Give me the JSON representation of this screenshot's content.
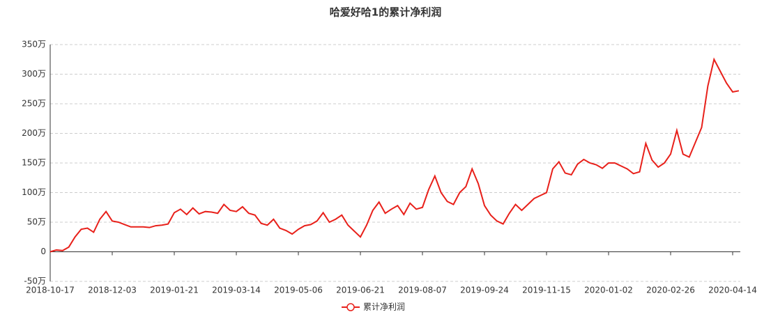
{
  "chart_data": {
    "type": "line",
    "title": "哈爱好哈1的累计净利润",
    "categories": [
      "2018-10-17",
      null,
      null,
      null,
      null,
      null,
      null,
      null,
      null,
      null,
      "2018-12-03",
      null,
      null,
      null,
      null,
      null,
      null,
      null,
      null,
      null,
      "2019-01-21",
      null,
      null,
      null,
      null,
      null,
      null,
      null,
      null,
      null,
      "2019-03-14",
      null,
      null,
      null,
      null,
      null,
      null,
      null,
      null,
      null,
      "2019-05-06",
      null,
      null,
      null,
      null,
      null,
      null,
      null,
      null,
      null,
      "2019-06-21",
      null,
      null,
      null,
      null,
      null,
      null,
      null,
      null,
      null,
      "2019-08-07",
      null,
      null,
      null,
      null,
      null,
      null,
      null,
      null,
      null,
      "2019-09-24",
      null,
      null,
      null,
      null,
      null,
      null,
      null,
      null,
      null,
      "2019-11-15",
      null,
      null,
      null,
      null,
      null,
      null,
      null,
      null,
      null,
      "2020-01-02",
      null,
      null,
      null,
      null,
      null,
      null,
      null,
      null,
      null,
      "2020-02-26",
      null,
      null,
      null,
      null,
      null,
      null,
      null,
      null,
      null,
      "2020-04-14",
      null
    ],
    "series": [
      {
        "name": "累计净利润",
        "color": "#e8201a",
        "values": [
          0,
          3,
          2,
          8,
          25,
          38,
          40,
          33,
          55,
          68,
          52,
          50,
          46,
          42,
          42,
          42,
          41,
          44,
          45,
          47,
          66,
          72,
          63,
          74,
          64,
          68,
          67,
          65,
          80,
          70,
          68,
          76,
          65,
          62,
          48,
          45,
          55,
          40,
          36,
          30,
          38,
          44,
          46,
          52,
          66,
          50,
          55,
          62,
          45,
          35,
          25,
          45,
          70,
          84,
          65,
          72,
          78,
          63,
          82,
          72,
          75,
          105,
          128,
          100,
          85,
          80,
          100,
          110,
          140,
          115,
          78,
          62,
          52,
          47,
          65,
          80,
          70,
          80,
          90,
          95,
          100,
          140,
          152,
          133,
          130,
          148,
          156,
          150,
          147,
          141,
          150,
          150,
          145,
          140,
          132,
          135,
          183,
          155,
          143,
          150,
          165,
          205,
          165,
          160,
          185,
          210,
          280,
          325,
          305,
          285,
          270,
          272
        ]
      }
    ],
    "ylim": [
      -50,
      350
    ],
    "yticks": [
      {
        "value": -50,
        "label": "-50万"
      },
      0,
      {
        "value": 50,
        "label": "50万"
      },
      {
        "value": 100,
        "label": "100万"
      },
      {
        "value": 150,
        "label": "150万"
      },
      {
        "value": 200,
        "label": "200万"
      },
      {
        "value": 250,
        "label": "250万"
      },
      {
        "value": 300,
        "label": "300万"
      },
      {
        "value": 350,
        "label": "350万"
      }
    ],
    "grid": true,
    "legend": "bottom"
  }
}
